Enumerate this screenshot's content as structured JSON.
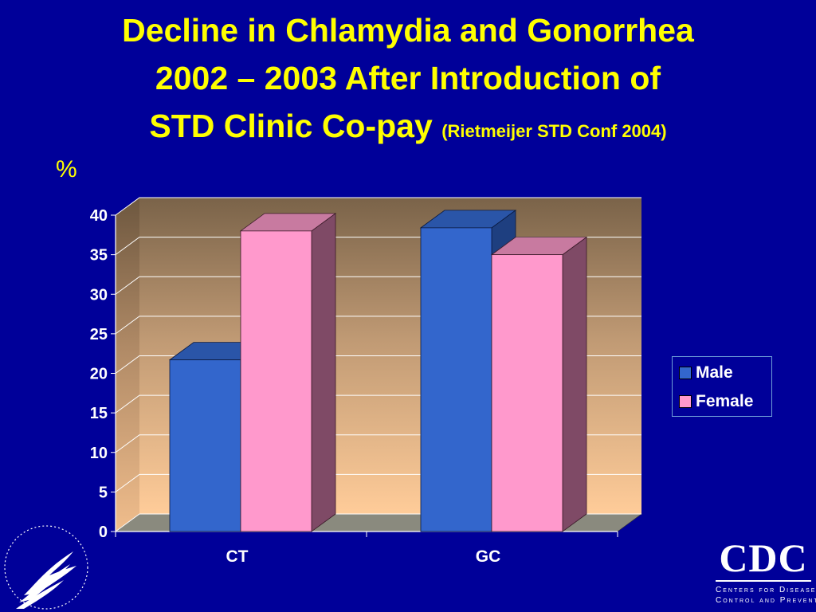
{
  "slide": {
    "title_line1": "Decline in Chlamydia and Gonorrhea",
    "title_line2": "2002 – 2003 After Introduction of",
    "title_line3": "STD Clinic Co-pay",
    "citation": "(Rietmeijer STD Conf 2004)",
    "unit_label": "%"
  },
  "colors": {
    "background": "#000099",
    "title": "#ffff00",
    "male": "#3366cc",
    "female": "#ff99cc"
  },
  "chart_data": {
    "type": "bar",
    "categories": [
      "CT",
      "GC"
    ],
    "series": [
      {
        "name": "Male",
        "values": [
          21.7,
          38.4
        ]
      },
      {
        "name": "Female",
        "values": [
          38.0,
          35.0
        ]
      }
    ],
    "ylim": [
      0,
      40
    ],
    "yticks": [
      0,
      5,
      10,
      15,
      20,
      25,
      30,
      35,
      40
    ],
    "ylabel": "%",
    "legend": "right",
    "grid": true,
    "style": "3d"
  },
  "logos": {
    "cdc_wordmark": "CDC",
    "cdc_tagline_1": "Centers for Disease",
    "cdc_tagline_2": "Control and Prevention"
  }
}
